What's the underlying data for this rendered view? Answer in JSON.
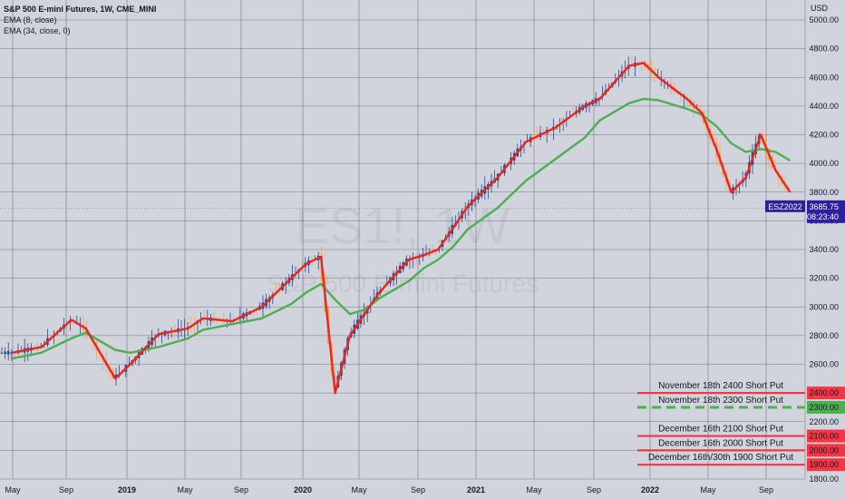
{
  "header": {
    "title": "S&P 500 E-mini Futures, 1W, CME_MINI",
    "indicators": [
      "EMA (8, close)",
      "EMA (34, close, 0)"
    ]
  },
  "watermark": {
    "symbol": "ES1!, 1W",
    "name": "S&P 500 E-mini Futures"
  },
  "price_axis": {
    "currency": "USD",
    "ticks": [
      "5000.00",
      "4800.00",
      "4600.00",
      "4400.00",
      "4200.00",
      "4000.00",
      "3800.00",
      "3600.00",
      "3400.00",
      "3200.00",
      "3000.00",
      "2800.00",
      "2600.00",
      "2400.00",
      "2200.00",
      "2000.00",
      "1800.00"
    ]
  },
  "last_price": {
    "contract": "ESZ2022",
    "price": "3685.75",
    "countdown": "08:23:40"
  },
  "time_axis": [
    "May",
    "Sep",
    "2019",
    "May",
    "Sep",
    "2020",
    "May",
    "Sep",
    "2021",
    "May",
    "Sep",
    "2022",
    "May",
    "Sep"
  ],
  "levels": [
    {
      "label": "November 18th 2400 Short Put",
      "price_label": "2400.00",
      "price": 2400,
      "style": "solid",
      "color": "#f23645"
    },
    {
      "label": "November 18th 2300 Short Put",
      "price_label": "2300.00",
      "price": 2300,
      "style": "dashed",
      "color": "#4caf50"
    },
    {
      "label": "December 16th 2100 Short Put",
      "price_label": "2100.00",
      "price": 2100,
      "style": "solid",
      "color": "#f23645"
    },
    {
      "label": "December 16th 2000 Short Put",
      "price_label": "2000.00",
      "price": 2000,
      "style": "solid",
      "color": "#f23645"
    },
    {
      "label": "December 16th/30th 1900 Short Put",
      "price_label": "1900.00",
      "price": 1900,
      "style": "solid",
      "color": "#f23645"
    }
  ],
  "colors": {
    "background": "#d1d4dc",
    "grid": "#2a2e39",
    "up_candle": "#2a4a8f",
    "down_candle": "#f7a35c",
    "ema_fast": "#e8281e",
    "ema_slow": "#4caf50",
    "price_tag": "#2e1f9e",
    "put_line": "#f23645"
  },
  "chart_data": {
    "type": "line",
    "x": [
      "2018-05",
      "2018-07",
      "2018-09",
      "2018-10",
      "2018-12",
      "2019-01",
      "2019-03",
      "2019-05",
      "2019-06",
      "2019-08",
      "2019-10",
      "2019-12",
      "2020-01",
      "2020-02",
      "2020-03",
      "2020-04",
      "2020-05",
      "2020-06",
      "2020-08",
      "2020-09",
      "2020-10",
      "2020-11",
      "2020-12",
      "2021-02",
      "2021-04",
      "2021-06",
      "2021-08",
      "2021-09",
      "2021-11",
      "2021-12",
      "2022-01",
      "2022-03",
      "2022-04",
      "2022-05",
      "2022-06",
      "2022-07",
      "2022-08",
      "2022-09",
      "2022-10"
    ],
    "series": [
      {
        "values": [
          2680,
          2720,
          2910,
          2850,
          2500,
          2600,
          2810,
          2850,
          2920,
          2900,
          3000,
          3200,
          3300,
          3350,
          2400,
          2800,
          2950,
          3100,
          3330,
          3360,
          3400,
          3550,
          3700,
          3900,
          4150,
          4250,
          4400,
          4450,
          4680,
          4700,
          4600,
          4450,
          4350,
          4100,
          3800,
          3900,
          4200,
          3950,
          3800
        ]
      },
      {
        "values": [
          2640,
          2680,
          2780,
          2820,
          2700,
          2680,
          2720,
          2780,
          2840,
          2880,
          2920,
          3020,
          3100,
          3160,
          3050,
          2950,
          2980,
          3060,
          3180,
          3270,
          3330,
          3420,
          3540,
          3690,
          3880,
          4030,
          4180,
          4300,
          4420,
          4450,
          4440,
          4380,
          4340,
          4260,
          4140,
          4080,
          4100,
          4080,
          4020
        ]
      }
    ],
    "ylabel": "USD",
    "ylim": [
      1800,
      5000
    ]
  }
}
